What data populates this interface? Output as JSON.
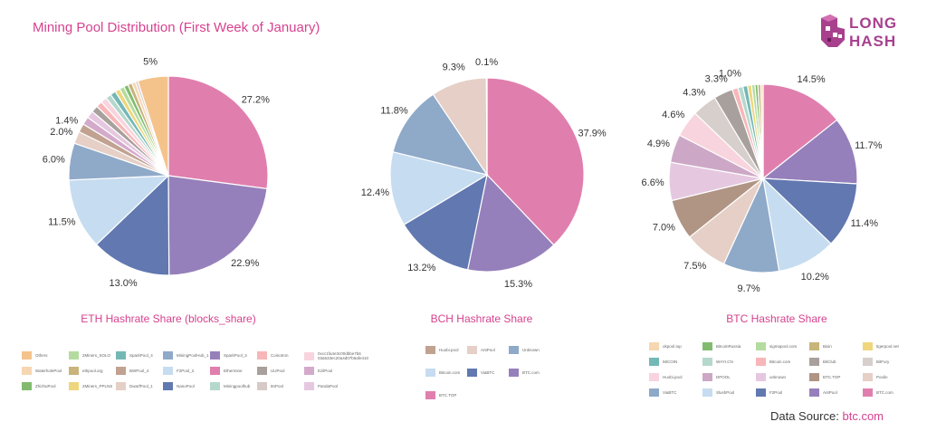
{
  "title": "Mining Pool Distribution (First Week of January)",
  "logo": {
    "line1": "LONG",
    "line2": "HASH",
    "color": "#a8408e"
  },
  "source": {
    "prefix": "Data Source:",
    "link": "btc.com"
  },
  "chart_data": [
    {
      "type": "pie",
      "title": "ETH Hashrate Share (blocks_share)",
      "slices": [
        {
          "name": "Ethermine",
          "value": 27.2,
          "label": "27.2%",
          "color": "#e07fae"
        },
        {
          "name": "SparkPool_3",
          "value": 22.9,
          "label": "22.9%",
          "color": "#9680bb"
        },
        {
          "name": "NanoPool",
          "value": 13.0,
          "label": "13.0%",
          "color": "#6178b0"
        },
        {
          "name": "F2Pool_2",
          "value": 11.5,
          "label": "11.5%",
          "color": "#c6dcf0"
        },
        {
          "name": "MiningPoolHub_1",
          "value": 6.0,
          "label": "6.0%",
          "color": "#8fa9c8"
        },
        {
          "name": "DwarfPool_1",
          "value": 2.0,
          "label": "2.0%",
          "color": "#e5cfc6"
        },
        {
          "name": "BWPool_4",
          "value": 1.4,
          "label": "1.4%",
          "color": "#c1a291"
        },
        {
          "name": "EzilPool",
          "value": 1.3,
          "label": "",
          "color": "#d4aacb"
        },
        {
          "name": "PandaPool",
          "value": 1.2,
          "label": "",
          "color": "#e5c8e0"
        },
        {
          "name": "UUPool",
          "value": 1.1,
          "label": "",
          "color": "#a8a09c"
        },
        {
          "name": "Coinotron",
          "value": 1.0,
          "label": "",
          "color": "#f8b6b8"
        },
        {
          "name": "0xcc1fa4e3c00dbbe7b603a533ec20a4d07b6afe410",
          "value": 1.0,
          "label": "",
          "color": "#f8d4de"
        },
        {
          "name": "Miningpoolhub",
          "value": 0.9,
          "label": "",
          "color": "#b5d8cc"
        },
        {
          "name": "SparkPool_4",
          "value": 0.9,
          "label": "",
          "color": "#74b8b6"
        },
        {
          "name": "2Miners_PPLNS",
          "value": 0.8,
          "label": "",
          "color": "#efd67c"
        },
        {
          "name": "2Miners_SOLO",
          "value": 0.8,
          "label": "",
          "color": "#b5dca0"
        },
        {
          "name": "ZhizhuPool",
          "value": 0.7,
          "label": "",
          "color": "#82bb70"
        },
        {
          "name": "ethpool.org",
          "value": 0.7,
          "label": "",
          "color": "#c9b47c"
        },
        {
          "name": "WaterholePool",
          "value": 0.6,
          "label": "",
          "color": "#f7d6b2"
        },
        {
          "name": "8nPool",
          "value": 0.4,
          "label": "",
          "color": "#d7c9c6"
        },
        {
          "name": "Others",
          "value": 5.0,
          "label": "5%",
          "color": "#f4c38b"
        }
      ],
      "legend_columns": [
        [
          "Others",
          "WaterholePool",
          "ZhizhuPool"
        ],
        [
          "2Miners_SOLO",
          "ethpool.org",
          "2Miners_PPLNS"
        ],
        [
          "SparkPool_4",
          "BWPool_4",
          "DwarfPool_1"
        ],
        [
          "MiningPoolHub_1",
          "F2Pool_2",
          "NanoPool"
        ],
        [
          "SparkPool_3",
          "Ethermine",
          "Miningpoolhub"
        ],
        [
          "Coinotron",
          "UUPool",
          "8nPool"
        ],
        [
          "0xcc1fa4e3c00dbbe7b603a533ec20a4d07b6afe410",
          "EzilPool",
          "PandaPool"
        ]
      ]
    },
    {
      "type": "pie",
      "title": "BCH Hashrate Share",
      "slices": [
        {
          "name": "BTC.TOP",
          "value": 37.9,
          "label": "37.9%",
          "color": "#e07fae"
        },
        {
          "name": "BTC.com",
          "value": 15.3,
          "label": "15.3%",
          "color": "#9680bb"
        },
        {
          "name": "ViaBTC",
          "value": 13.2,
          "label": "13.2%",
          "color": "#6178b0"
        },
        {
          "name": "Bitcoin.com",
          "value": 12.4,
          "label": "12.4%",
          "color": "#c6dcf0"
        },
        {
          "name": "Unknown",
          "value": 11.8,
          "label": "11.8%",
          "color": "#8fa9c8"
        },
        {
          "name": "AntPool",
          "value": 9.3,
          "label": "9.3%",
          "color": "#e5cfc6"
        },
        {
          "name": "Huobi.pool",
          "value": 0.1,
          "label": "0.1%",
          "color": "#c1a291"
        }
      ],
      "legend_columns": [
        [
          "Huobi.pool",
          "Bitcoin.com",
          "BTC.TOP"
        ],
        [
          "AntPool",
          "ViaBTC"
        ],
        [
          "Unknown",
          "BTC.com"
        ]
      ]
    },
    {
      "type": "pie",
      "title": "BTC Hashrate Share",
      "slices": [
        {
          "name": "BTC.com",
          "value": 14.5,
          "label": "14.5%",
          "color": "#e07fae"
        },
        {
          "name": "AntPool",
          "value": 11.7,
          "label": "11.7%",
          "color": "#9680bb"
        },
        {
          "name": "F2Pool",
          "value": 11.4,
          "label": "11.4%",
          "color": "#6178b0"
        },
        {
          "name": "SlushPool",
          "value": 10.2,
          "label": "10.2%",
          "color": "#c6dcf0"
        },
        {
          "name": "ViaBTC",
          "value": 9.7,
          "label": "9.7%",
          "color": "#8fa9c8"
        },
        {
          "name": "Poolin",
          "value": 7.5,
          "label": "7.5%",
          "color": "#e5cfc6"
        },
        {
          "name": "BTC.TOP",
          "value": 7.0,
          "label": "7.0%",
          "color": "#b09484"
        },
        {
          "name": "unknown",
          "value": 6.6,
          "label": "6.6%",
          "color": "#e5c8e0"
        },
        {
          "name": "DPOOL",
          "value": 4.9,
          "label": "4.9%",
          "color": "#cca8c6"
        },
        {
          "name": "Huobi.pool",
          "value": 4.6,
          "label": "4.6%",
          "color": "#f8d4de"
        },
        {
          "name": "BitFury",
          "value": 4.3,
          "label": "4.3%",
          "color": "#d7cfcc"
        },
        {
          "name": "BitClub",
          "value": 3.3,
          "label": "3.3%",
          "color": "#a8a09c"
        },
        {
          "name": "Bitcoin.com",
          "value": 1.0,
          "label": "1.0%",
          "color": "#f8b6b8"
        },
        {
          "name": "WAYI.CN",
          "value": 0.9,
          "label": "",
          "color": "#b5d8cc"
        },
        {
          "name": "58COIN",
          "value": 0.8,
          "label": "",
          "color": "#74b8b6"
        },
        {
          "name": "tigerpool.net",
          "value": 0.7,
          "label": "",
          "color": "#efd67c"
        },
        {
          "name": "sigmapool.com",
          "value": 0.6,
          "label": "",
          "color": "#b5dca0"
        },
        {
          "name": "BitcoinRussia",
          "value": 0.5,
          "label": "",
          "color": "#82bb70"
        },
        {
          "name": "Bixin",
          "value": 0.5,
          "label": "",
          "color": "#c9b47c"
        },
        {
          "name": "okpool.top",
          "value": 0.4,
          "label": "",
          "color": "#f7d6b2"
        }
      ],
      "legend_columns": [
        [
          "okpool.top",
          "58COIN",
          "Huobi.pool",
          "ViaBTC"
        ],
        [
          "BitcoinRussia",
          "WAYI.CN",
          "DPOOL",
          "SlushPool"
        ],
        [
          "sigmapool.com",
          "Bitcoin.com",
          "unknown",
          "F2Pool"
        ],
        [
          "Bixin",
          "BitClub",
          "BTC.TOP",
          "AntPool"
        ],
        [
          "tigerpool.net",
          "BitFury",
          "Poolin",
          "BTC.com"
        ]
      ]
    }
  ]
}
